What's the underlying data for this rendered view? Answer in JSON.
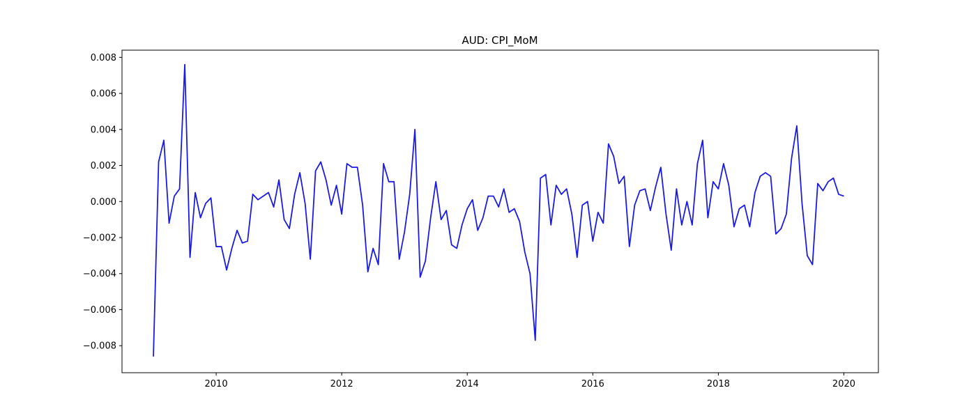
{
  "chart_data": {
    "type": "line",
    "title": "AUD: CPI_MoM",
    "xlabel": "",
    "ylabel": "",
    "xlim": [
      2008.5,
      2020.55
    ],
    "ylim": [
      -0.0095,
      0.0084
    ],
    "grid": false,
    "line_color": "#1a1ae6",
    "x_ticks": [
      2010,
      2012,
      2014,
      2016,
      2018,
      2020
    ],
    "x_tick_labels": [
      "2010",
      "2012",
      "2014",
      "2016",
      "2018",
      "2020"
    ],
    "y_ticks": [
      -0.008,
      -0.006,
      -0.004,
      -0.002,
      0.0,
      0.002,
      0.004,
      0.006,
      0.008
    ],
    "y_tick_labels": [
      "−0.008",
      "−0.006",
      "−0.004",
      "−0.002",
      "0.000",
      "0.002",
      "0.004",
      "0.006",
      "0.008"
    ],
    "x_start_year": 2009,
    "points_per_year": 12,
    "values": [
      -0.0086,
      0.0022,
      0.0034,
      -0.0012,
      0.0003,
      0.0007,
      0.0076,
      -0.0031,
      0.0005,
      -0.0009,
      -0.0001,
      0.0002,
      -0.0025,
      -0.0025,
      -0.0038,
      -0.0026,
      -0.0016,
      -0.0023,
      -0.0022,
      0.0004,
      0.0001,
      0.0003,
      0.0005,
      -0.0003,
      0.0012,
      -0.001,
      -0.0015,
      0.0004,
      0.0016,
      -0.0001,
      -0.0032,
      0.0017,
      0.0022,
      0.0012,
      -0.0002,
      0.0009,
      -0.0007,
      0.0021,
      0.0019,
      0.0019,
      -0.0002,
      -0.0039,
      -0.0026,
      -0.0035,
      0.0021,
      0.0011,
      0.0011,
      -0.0032,
      -0.0017,
      0.0004,
      0.004,
      -0.0042,
      -0.0033,
      -0.0009,
      0.0011,
      -0.001,
      -0.0005,
      -0.0024,
      -0.0026,
      -0.0013,
      -0.0004,
      0.0001,
      -0.0016,
      -0.0009,
      0.0003,
      0.0003,
      -0.0003,
      0.0007,
      -0.0006,
      -0.0004,
      -0.0011,
      -0.0028,
      -0.004,
      -0.0077,
      0.0013,
      0.0015,
      -0.0013,
      0.0009,
      0.0004,
      0.0007,
      -0.0007,
      -0.0031,
      -0.0002,
      0.0,
      -0.0022,
      -0.0006,
      -0.0012,
      0.0032,
      0.0025,
      0.001,
      0.0014,
      -0.0025,
      -0.0002,
      0.0006,
      0.0007,
      -0.0005,
      0.0008,
      0.0019,
      -0.0007,
      -0.0027,
      0.0007,
      -0.0013,
      0.0,
      -0.0013,
      0.0021,
      0.0034,
      -0.0009,
      0.0011,
      0.0007,
      0.0021,
      0.0009,
      -0.0014,
      -0.0004,
      -0.0002,
      -0.0014,
      0.0005,
      0.0014,
      0.0016,
      0.0014,
      -0.0018,
      -0.0015,
      -0.0007,
      0.0024,
      0.0042,
      -0.0001,
      -0.003,
      -0.0035,
      0.001,
      0.0006,
      0.0011,
      0.0013,
      0.0004,
      0.0003
    ]
  }
}
